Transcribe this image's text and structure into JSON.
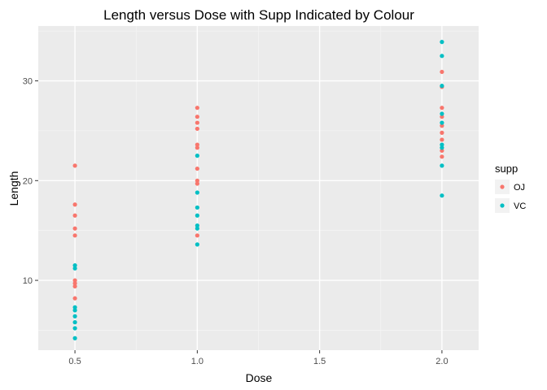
{
  "chart_data": {
    "type": "scatter",
    "title": "Length versus Dose with Supp Indicated by Colour",
    "xlabel": "Dose",
    "ylabel": "Length",
    "xlim": [
      0.35,
      2.15
    ],
    "ylim": [
      3.0,
      35.5
    ],
    "x_ticks": [
      0.5,
      1.0,
      1.5,
      2.0
    ],
    "x_tick_labels": [
      "0.5",
      "1.0",
      "1.5",
      "2.0"
    ],
    "y_ticks": [
      10,
      20,
      30
    ],
    "y_tick_labels": [
      "10",
      "20",
      "30"
    ],
    "grid": true,
    "legend": {
      "title": "supp",
      "position": "right"
    },
    "series": [
      {
        "name": "OJ",
        "color": "#f8766d",
        "points": [
          [
            0.5,
            21.5
          ],
          [
            0.5,
            17.6
          ],
          [
            0.5,
            16.5
          ],
          [
            0.5,
            15.2
          ],
          [
            0.5,
            14.5
          ],
          [
            0.5,
            10.0
          ],
          [
            0.5,
            9.7
          ],
          [
            0.5,
            9.4
          ],
          [
            0.5,
            8.2
          ],
          [
            1.0,
            27.3
          ],
          [
            1.0,
            26.4
          ],
          [
            1.0,
            25.8
          ],
          [
            1.0,
            25.2
          ],
          [
            1.0,
            23.6
          ],
          [
            1.0,
            23.3
          ],
          [
            1.0,
            21.2
          ],
          [
            1.0,
            20.0
          ],
          [
            1.0,
            19.7
          ],
          [
            1.0,
            14.5
          ],
          [
            2.0,
            30.9
          ],
          [
            2.0,
            29.4
          ],
          [
            2.0,
            27.3
          ],
          [
            2.0,
            26.4
          ],
          [
            2.0,
            25.5
          ],
          [
            2.0,
            24.8
          ],
          [
            2.0,
            24.1
          ],
          [
            2.0,
            23.0
          ],
          [
            2.0,
            22.4
          ]
        ]
      },
      {
        "name": "VC",
        "color": "#00bfc4",
        "points": [
          [
            0.5,
            11.5
          ],
          [
            0.5,
            11.2
          ],
          [
            0.5,
            7.3
          ],
          [
            0.5,
            7.0
          ],
          [
            0.5,
            6.4
          ],
          [
            0.5,
            5.8
          ],
          [
            0.5,
            5.2
          ],
          [
            0.5,
            4.2
          ],
          [
            1.0,
            22.5
          ],
          [
            1.0,
            18.8
          ],
          [
            1.0,
            17.3
          ],
          [
            1.0,
            16.5
          ],
          [
            1.0,
            15.5
          ],
          [
            1.0,
            15.2
          ],
          [
            1.0,
            13.6
          ],
          [
            2.0,
            33.9
          ],
          [
            2.0,
            32.5
          ],
          [
            2.0,
            29.5
          ],
          [
            2.0,
            26.7
          ],
          [
            2.0,
            25.8
          ],
          [
            2.0,
            23.6
          ],
          [
            2.0,
            23.3
          ],
          [
            2.0,
            21.5
          ],
          [
            2.0,
            18.5
          ]
        ]
      }
    ]
  }
}
